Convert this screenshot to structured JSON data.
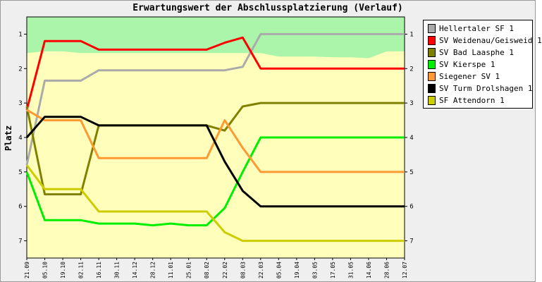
{
  "chart_data": {
    "type": "line",
    "title": "Erwartungswert der Abschlussplatzierung (Verlauf)",
    "ylabel": "Platz",
    "xlabel": "",
    "ylim": [
      7.5,
      0.5
    ],
    "ytick_labels": [
      "1",
      "2",
      "3",
      "4",
      "5",
      "6",
      "7"
    ],
    "categories": [
      "21.09",
      "05.10",
      "19.10",
      "02.11",
      "16.11",
      "30.11",
      "14.12",
      "28.12",
      "11.01",
      "25.01",
      "08.02",
      "22.02",
      "08.03",
      "22.03",
      "05.04",
      "19.04",
      "03.05",
      "17.05",
      "31.05",
      "14.06",
      "28.06",
      "12.07"
    ],
    "background_band_top": [
      1.55,
      1.5,
      1.5,
      1.55,
      1.55,
      1.55,
      1.55,
      1.55,
      1.55,
      1.55,
      1.55,
      1.55,
      1.55,
      1.55,
      1.65,
      1.65,
      1.65,
      1.67,
      1.67,
      1.7,
      1.5,
      1.5
    ],
    "legend_position": "right",
    "series": [
      {
        "name": "Hellertaler SF 1",
        "color": "#aaaaaa",
        "values": [
          4.8,
          2.35,
          2.35,
          2.35,
          2.05,
          2.05,
          2.05,
          2.05,
          2.05,
          2.05,
          2.05,
          2.05,
          1.95,
          1.0,
          1.0,
          1.0,
          1.0,
          1.0,
          1.0,
          1.0,
          1.0,
          1.0
        ]
      },
      {
        "name": "SV Weidenau/Geisweid 1",
        "color": "#ff0000",
        "values": [
          3.2,
          1.2,
          1.2,
          1.2,
          1.45,
          1.45,
          1.45,
          1.45,
          1.45,
          1.45,
          1.45,
          1.25,
          1.1,
          2.0,
          2.0,
          2.0,
          2.0,
          2.0,
          2.0,
          2.0,
          2.0,
          2.0
        ]
      },
      {
        "name": "SV Bad Laasphe 1",
        "color": "#808000",
        "values": [
          3.1,
          5.65,
          5.65,
          5.65,
          3.65,
          3.65,
          3.65,
          3.65,
          3.65,
          3.65,
          3.65,
          3.8,
          3.1,
          3.0,
          3.0,
          3.0,
          3.0,
          3.0,
          3.0,
          3.0,
          3.0,
          3.0
        ]
      },
      {
        "name": "SV Kierspe 1",
        "color": "#00ee00",
        "values": [
          5.0,
          6.4,
          6.4,
          6.4,
          6.5,
          6.5,
          6.5,
          6.55,
          6.5,
          6.55,
          6.55,
          6.05,
          5.0,
          4.0,
          4.0,
          4.0,
          4.0,
          4.0,
          4.0,
          4.0,
          4.0,
          4.0
        ]
      },
      {
        "name": "Siegener SV 1",
        "color": "#ff9933",
        "values": [
          3.2,
          3.5,
          3.5,
          3.5,
          4.6,
          4.6,
          4.6,
          4.6,
          4.6,
          4.6,
          4.6,
          3.5,
          4.3,
          5.0,
          5.0,
          5.0,
          5.0,
          5.0,
          5.0,
          5.0,
          5.0,
          5.0
        ]
      },
      {
        "name": "SV Turm Drolshagen 1",
        "color": "#000000",
        "values": [
          4.0,
          3.4,
          3.4,
          3.4,
          3.65,
          3.65,
          3.65,
          3.65,
          3.65,
          3.65,
          3.65,
          4.7,
          5.55,
          6.0,
          6.0,
          6.0,
          6.0,
          6.0,
          6.0,
          6.0,
          6.0,
          6.0
        ]
      },
      {
        "name": "SF Attendorn 1",
        "color": "#cccc00",
        "values": [
          4.8,
          5.5,
          5.5,
          5.5,
          6.15,
          6.15,
          6.15,
          6.15,
          6.15,
          6.15,
          6.15,
          6.75,
          7.0,
          7.0,
          7.0,
          7.0,
          7.0,
          7.0,
          7.0,
          7.0,
          7.0,
          7.0
        ]
      }
    ]
  },
  "colors": {
    "top_band": "#aaf5aa",
    "plot_background": "#ffffbb",
    "frame_background": "#efefef"
  }
}
